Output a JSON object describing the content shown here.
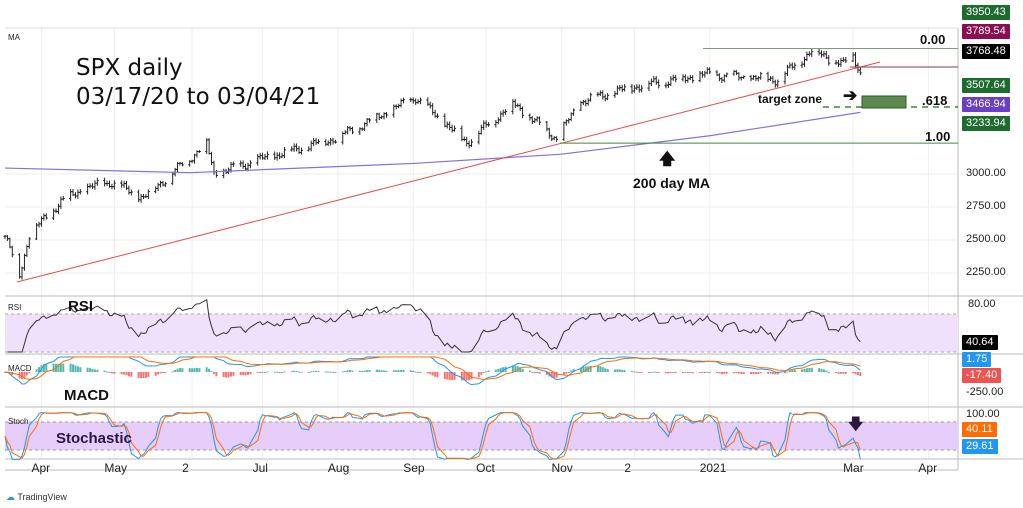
{
  "chart_data": {
    "type": "ohlc",
    "title": "SPX daily",
    "subtitle": "03/17/20 to 03/04/21",
    "pane_label": "MA",
    "x_ticks": [
      "Apr",
      "May",
      "2",
      "Jul",
      "Aug",
      "Sep",
      "Oct",
      "Nov",
      "2",
      "2021",
      "Mar",
      "Apr"
    ],
    "y_ticks": [
      "3000.00",
      "2750.00",
      "2500.00",
      "2250.00"
    ],
    "ylim": [
      2150,
      4000
    ],
    "key_closes": [
      [
        "2020-03-17",
        2529
      ],
      [
        "2020-03-23",
        2237
      ],
      [
        "2020-03-27",
        2541
      ],
      [
        "2020-04-09",
        2790
      ],
      [
        "2020-04-17",
        2875
      ],
      [
        "2020-04-29",
        2940
      ],
      [
        "2020-05-13",
        2820
      ],
      [
        "2020-06-08",
        3232
      ],
      [
        "2020-06-11",
        3002
      ],
      [
        "2020-07-01",
        3115
      ],
      [
        "2020-07-31",
        3271
      ],
      [
        "2020-09-02",
        3580
      ],
      [
        "2020-09-23",
        3237
      ],
      [
        "2020-10-12",
        3534
      ],
      [
        "2020-10-30",
        3270
      ],
      [
        "2020-11-09",
        3550
      ],
      [
        "2020-12-01",
        3662
      ],
      [
        "2020-12-31",
        3756
      ],
      [
        "2021-01-29",
        3714
      ],
      [
        "2021-02-12",
        3934
      ],
      [
        "2021-02-25",
        3829
      ],
      [
        "2021-03-01",
        3901
      ],
      [
        "2021-03-04",
        3768
      ]
    ],
    "ma200": [
      [
        "2020-03-17",
        3045
      ],
      [
        "2020-06-01",
        3010
      ],
      [
        "2020-09-01",
        3080
      ],
      [
        "2020-11-01",
        3150
      ],
      [
        "2021-01-01",
        3290
      ],
      [
        "2021-03-04",
        3467
      ]
    ],
    "price_labels": [
      {
        "text": "3950.43",
        "color": "#1e6b2e"
      },
      {
        "text": "3789.54",
        "color": "#880e4f"
      },
      {
        "text": "3768.48",
        "color": "#000000"
      },
      {
        "text": "3507.64",
        "color": "#1e6b2e"
      },
      {
        "text": "3466.94",
        "color": "#6a3fc1"
      },
      {
        "text": "3233.94",
        "color": "#1e6b2e"
      }
    ],
    "fib_levels": [
      {
        "label": "0.00",
        "value": 3950.43
      },
      {
        "label": ".618",
        "value": 3507.64
      },
      {
        "label": "1.00",
        "value": 3233.94
      }
    ],
    "annotations": {
      "target_zone": "target zone",
      "ma_note": "200 day MA"
    },
    "rsi": {
      "label": "RSI",
      "title": "RSI",
      "value_label": "40.64",
      "tick": "80.00",
      "bands": [
        70,
        30
      ]
    },
    "macd": {
      "label": "MACD",
      "title": "MACD",
      "macd_label": "1.75",
      "hist_label": "-17.40",
      "tick": "-250.00"
    },
    "stoch": {
      "label": "Stoch",
      "title": "Stochastic",
      "k_label": "29.61",
      "d_label": "40.11",
      "tick": "100.00",
      "bands": [
        80,
        20
      ]
    }
  },
  "footer": {
    "brand": "TradingView"
  },
  "colors": {
    "up": "#222",
    "red_trend": "#e05050",
    "ma": "#8a6fd8",
    "band": "#efe0fb",
    "blue": "#2196f3",
    "orange": "#ff6d00"
  }
}
